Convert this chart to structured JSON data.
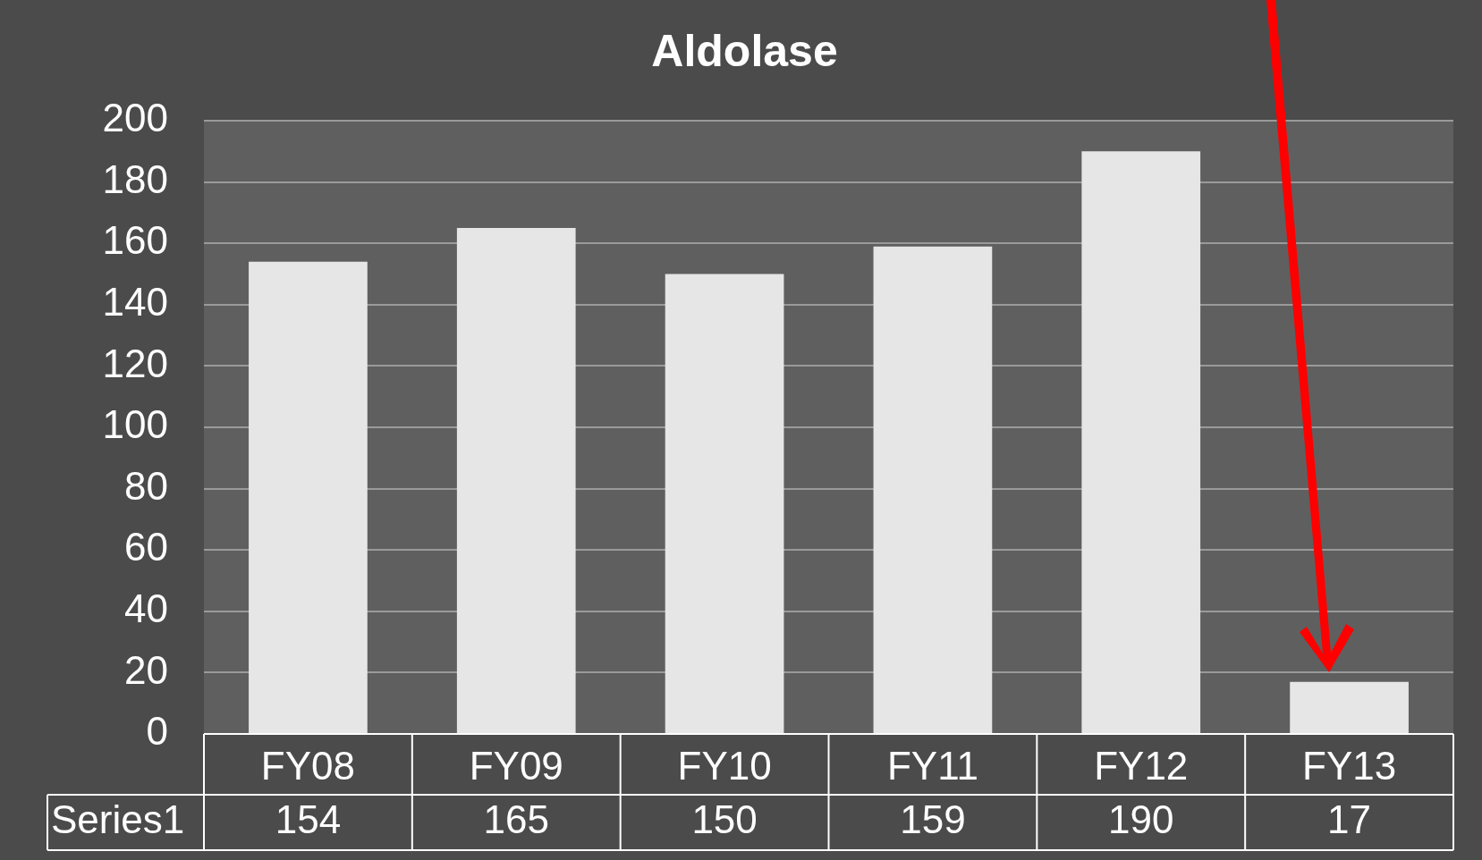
{
  "chart_data": {
    "type": "bar",
    "title": "Aldolase",
    "categories": [
      "FY08",
      "FY09",
      "FY10",
      "FY11",
      "FY12",
      "FY13"
    ],
    "series": [
      {
        "name": "Series1",
        "color": "#e6e6e6",
        "values": [
          154,
          165,
          150,
          159,
          190,
          17
        ]
      }
    ],
    "ylim": [
      0,
      200
    ],
    "yticks": [
      0,
      20,
      40,
      60,
      80,
      100,
      120,
      140,
      160,
      180,
      200
    ],
    "grid": "y",
    "data_labels": true
  }
}
